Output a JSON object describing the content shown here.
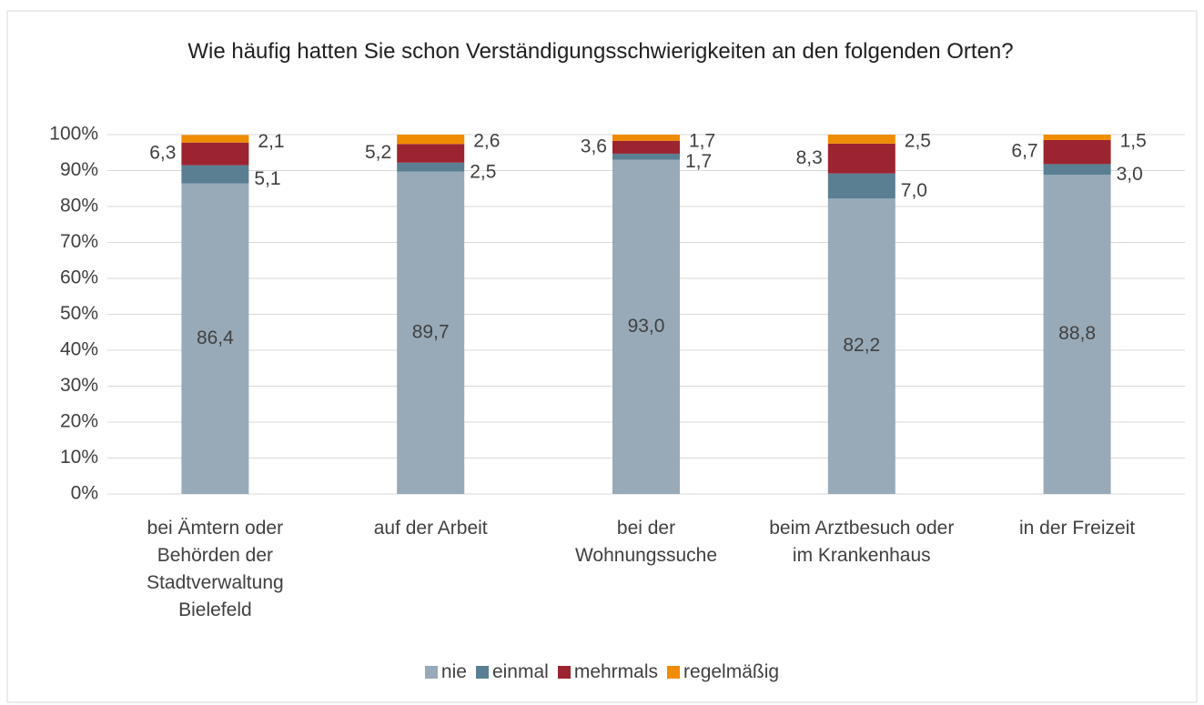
{
  "chart_data": {
    "type": "stacked_bar",
    "title": "Wie häufig hatten Sie schon Verständigungsschwierigkeiten an den folgenden Orten?",
    "categories": [
      "bei Ämtern oder Behörden der Stadtverwaltung Bielefeld",
      "auf der Arbeit",
      "bei der Wohnungssuche",
      "beim Arztbesuch oder im Krankenhaus",
      "in der Freizeit"
    ],
    "series": [
      {
        "name": "nie",
        "color": "#98aab8",
        "values": [
          86.4,
          89.7,
          93.0,
          82.2,
          88.8
        ],
        "value_labels": [
          "86,4",
          "89,7",
          "93,0",
          "82,2",
          "88,8"
        ]
      },
      {
        "name": "einmal",
        "color": "#5a7f92",
        "values": [
          5.1,
          2.5,
          1.7,
          7.0,
          3.0
        ],
        "value_labels": [
          "5,1",
          "2,5",
          "1,7",
          "7,0",
          "3,0"
        ]
      },
      {
        "name": "mehrmals",
        "color": "#9b2430",
        "values": [
          6.3,
          5.2,
          3.6,
          8.3,
          6.7
        ],
        "value_labels": [
          "6,3",
          "5,2",
          "3,6",
          "8,3",
          "6,7"
        ]
      },
      {
        "name": "regelmäßig",
        "color": "#f08c00",
        "values": [
          2.1,
          2.6,
          1.7,
          2.5,
          1.5
        ],
        "value_labels": [
          "2,1",
          "2,6",
          "1,7",
          "2,5",
          "1,5"
        ]
      }
    ],
    "ylim": [
      0,
      100
    ],
    "yticks": [
      {
        "value": 0,
        "label": "0%"
      },
      {
        "value": 10,
        "label": "10%"
      },
      {
        "value": 20,
        "label": "20%"
      },
      {
        "value": 30,
        "label": "30%"
      },
      {
        "value": 40,
        "label": "40%"
      },
      {
        "value": 50,
        "label": "50%"
      },
      {
        "value": 60,
        "label": "60%"
      },
      {
        "value": 70,
        "label": "70%"
      },
      {
        "value": 80,
        "label": "80%"
      },
      {
        "value": 90,
        "label": "90%"
      },
      {
        "value": 100,
        "label": "100%"
      }
    ],
    "grid": true,
    "legend": "bottom"
  }
}
